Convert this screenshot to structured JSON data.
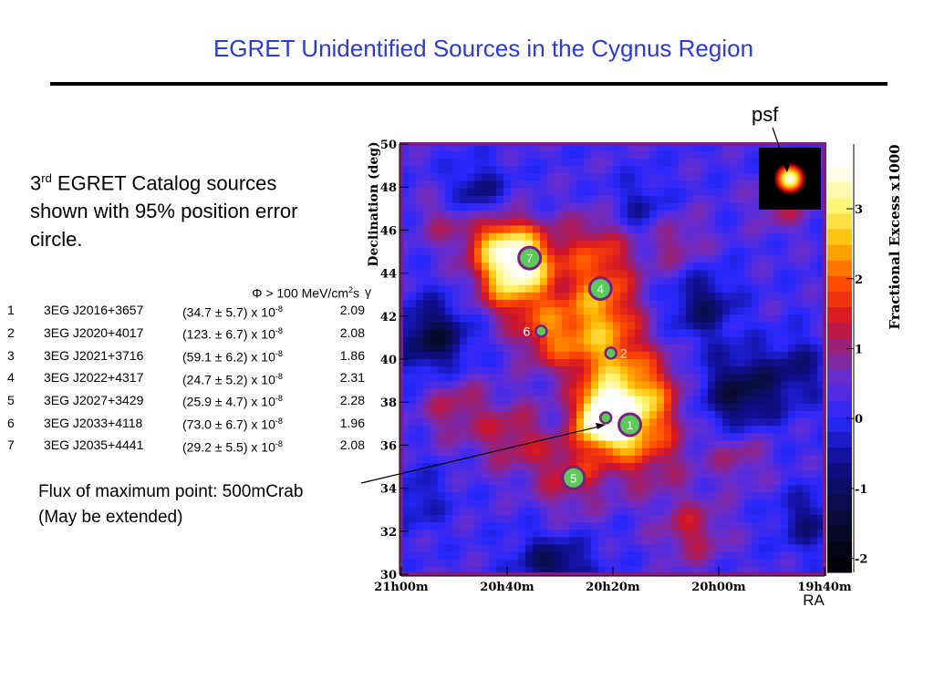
{
  "slide": {
    "title": "EGRET Unidentified Sources in the Cygnus Region",
    "intro_pre": "3",
    "intro_sup": "rd",
    "intro_rest": " EGRET Catalog sources shown with 95% position error circle.",
    "flux_line1": "Flux of maximum point: 500mCrab",
    "flux_line2": "(May be extended)",
    "psf_label": "psf"
  },
  "table": {
    "flux_header": "Φ > 100 MeV/cm",
    "flux_header_sup": "2",
    "flux_header_tail": "s",
    "gamma_header": "γ",
    "rows": [
      {
        "num": "1",
        "name": "3EG J2016+3657",
        "flux": "(34.7 ± 5.7) x 10",
        "exp": "-8",
        "gamma": "2.09"
      },
      {
        "num": "2",
        "name": "3EG J2020+4017",
        "flux": "(123. ± 6.7) x 10",
        "exp": "-8",
        "gamma": "2.08"
      },
      {
        "num": "3",
        "name": "3EG J2021+3716",
        "flux": "(59.1 ± 6.2) x 10",
        "exp": "-8",
        "gamma": "1.86"
      },
      {
        "num": "4",
        "name": "3EG J2022+4317",
        "flux": "(24.7 ± 5.2) x 10",
        "exp": "-8",
        "gamma": "2.31"
      },
      {
        "num": "5",
        "name": "3EG J2027+3429",
        "flux": "(25.9 ± 4.7) x 10",
        "exp": "-8",
        "gamma": "2.28"
      },
      {
        "num": "6",
        "name": "3EG J2033+4118",
        "flux": "(73.0 ± 6.7) x 10",
        "exp": "-8",
        "gamma": "1.96"
      },
      {
        "num": "7",
        "name": "3EG J2035+4441",
        "flux": "(29.2 ± 5.5) x 10",
        "exp": "-8",
        "gamma": "2.08"
      }
    ]
  },
  "chart_data": {
    "type": "heatmap",
    "ylabel": "Declination (deg)",
    "xlabel": "RA",
    "colorbar_label": "Fractional Excess x1000",
    "x_ticks": [
      "21h00m",
      "20h40m",
      "20h20m",
      "20h00m",
      "19h40m"
    ],
    "y_ticks": [
      30,
      32,
      34,
      36,
      38,
      40,
      42,
      44,
      46,
      48,
      50
    ],
    "ylim": [
      30,
      50
    ],
    "xlim_minutes": [
      1260,
      1180
    ],
    "colorbar_ticks": [
      -2,
      -1,
      0,
      1,
      2,
      3
    ],
    "colorbar_range": [
      -2.2,
      3.6
    ],
    "colors": {
      "frame": "#7d1e84",
      "circle": "#7d1e84",
      "marker_fill": "#5cc95c"
    },
    "sources": [
      {
        "label": "1",
        "ra_min": 1216.8,
        "dec": 36.95,
        "filled": true
      },
      {
        "label": "2",
        "ra_min": 1220.4,
        "dec": 40.28,
        "filled": false
      },
      {
        "label": "3",
        "ra_min": 1221.35,
        "dec": 37.27,
        "filled": false
      },
      {
        "label": "4",
        "ra_min": 1222.37,
        "dec": 43.28,
        "filled": true
      },
      {
        "label": "5",
        "ra_min": 1227.45,
        "dec": 34.48,
        "filled": true
      },
      {
        "label": "6",
        "ra_min": 1233.55,
        "dec": 41.3,
        "filled": false
      },
      {
        "label": "7",
        "ra_min": 1235.75,
        "dec": 44.7,
        "filled": true
      }
    ],
    "blobs": [
      {
        "ra_min": 1221.5,
        "dec": 37.3,
        "amp": 3.4,
        "sigma": 0.8
      },
      {
        "ra_min": 1218.5,
        "dec": 37.4,
        "amp": 1.8,
        "sigma": 1.2
      },
      {
        "ra_min": 1221,
        "dec": 40.1,
        "amp": 1.8,
        "sigma": 1.4
      },
      {
        "ra_min": 1222.5,
        "dec": 42.6,
        "amp": 1.5,
        "sigma": 1.2
      },
      {
        "ra_min": 1223,
        "dec": 45,
        "amp": 1.3,
        "sigma": 1.3
      },
      {
        "ra_min": 1239,
        "dec": 43.8,
        "amp": 2.4,
        "sigma": 1.2
      },
      {
        "ra_min": 1232,
        "dec": 41.2,
        "amp": 1.5,
        "sigma": 1.1
      },
      {
        "ra_min": 1236,
        "dec": 44.8,
        "amp": 1.4,
        "sigma": 1
      },
      {
        "ra_min": 1242,
        "dec": 45.6,
        "amp": 1.6,
        "sigma": 1
      },
      {
        "ra_min": 1228,
        "dec": 34.8,
        "amp": 1.1,
        "sigma": 1.2
      },
      {
        "ra_min": 1214,
        "dec": 36,
        "amp": 1.2,
        "sigma": 1.5
      },
      {
        "ra_min": 1239,
        "dec": 36.4,
        "amp": 1,
        "sigma": 1.2
      },
      {
        "ra_min": 1250,
        "dec": 37.8,
        "amp": 0.9,
        "sigma": 1.1
      },
      {
        "ra_min": 1212,
        "dec": 38.6,
        "amp": 1,
        "sigma": 1.1
      },
      {
        "ra_min": 1205,
        "dec": 32,
        "amp": 1,
        "sigma": 1.1
      },
      {
        "ra_min": 1196,
        "dec": 35.6,
        "amp": 0.8,
        "sigma": 1
      },
      {
        "ra_min": 1188,
        "dec": 47.3,
        "amp": 0.9,
        "sigma": 0.9
      },
      {
        "ra_min": 1208,
        "dec": 45.5,
        "amp": 0.8,
        "sigma": 1
      },
      {
        "ra_min": 1251,
        "dec": 46.5,
        "amp": 0.8,
        "sigma": 1
      },
      {
        "ra_min": 1230,
        "dec": 32,
        "amp": 0.5,
        "sigma": 1
      },
      {
        "ra_min": 1254,
        "dec": 41,
        "amp": -1.6,
        "sigma": 1.2
      },
      {
        "ra_min": 1231,
        "dec": 30.6,
        "amp": -1.5,
        "sigma": 1.2
      },
      {
        "ra_min": 1196,
        "dec": 38.4,
        "amp": -1.6,
        "sigma": 1.3
      },
      {
        "ra_min": 1203,
        "dec": 42.5,
        "amp": -1.2,
        "sigma": 1.1
      },
      {
        "ra_min": 1246,
        "dec": 47.6,
        "amp": -1.2,
        "sigma": 1
      },
      {
        "ra_min": 1185,
        "dec": 39.5,
        "amp": -0.9,
        "sigma": 1.1
      },
      {
        "ra_min": 1215,
        "dec": 47,
        "amp": -0.8,
        "sigma": 1
      },
      {
        "ra_min": 1257,
        "dec": 33.5,
        "amp": -0.7,
        "sigma": 1
      },
      {
        "ra_min": 1183,
        "dec": 32.5,
        "amp": -1,
        "sigma": 1
      }
    ]
  }
}
